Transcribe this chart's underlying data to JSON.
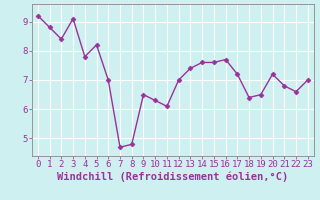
{
  "x": [
    0,
    1,
    2,
    3,
    4,
    5,
    6,
    7,
    8,
    9,
    10,
    11,
    12,
    13,
    14,
    15,
    16,
    17,
    18,
    19,
    20,
    21,
    22,
    23
  ],
  "y": [
    9.2,
    8.8,
    8.4,
    9.1,
    7.8,
    8.2,
    7.0,
    4.7,
    4.8,
    6.5,
    6.3,
    6.1,
    7.0,
    7.4,
    7.6,
    7.6,
    7.7,
    7.2,
    6.4,
    6.5,
    7.2,
    6.8,
    6.6,
    7.0
  ],
  "line_color": "#993399",
  "marker": "D",
  "markersize": 2.5,
  "linewidth": 1.0,
  "xlabel": "Windchill (Refroidissement éolien,°C)",
  "xlabel_fontsize": 7.5,
  "xlabel_color": "#993399",
  "ylabel_ticks": [
    5,
    6,
    7,
    8,
    9
  ],
  "xtick_labels": [
    "0",
    "1",
    "2",
    "3",
    "4",
    "5",
    "6",
    "7",
    "8",
    "9",
    "10",
    "11",
    "12",
    "13",
    "14",
    "15",
    "16",
    "17",
    "18",
    "19",
    "20",
    "21",
    "22",
    "23"
  ],
  "xlim": [
    -0.5,
    23.5
  ],
  "ylim": [
    4.4,
    9.6
  ],
  "background_color": "#cff0f0",
  "grid_color": "#ffffff",
  "tick_fontsize": 6.5,
  "tick_color": "#993399",
  "xlabel_fontweight": "bold"
}
